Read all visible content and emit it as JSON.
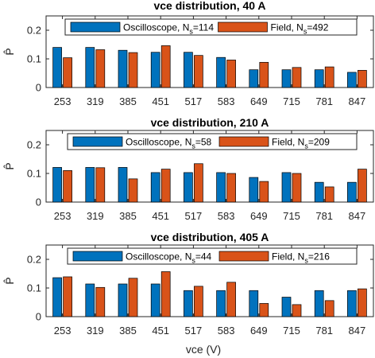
{
  "chart_data": [
    {
      "type": "bar",
      "title": "vce distribution, 40 A",
      "ylabel": "P̂",
      "xlabel": "",
      "ylim": [
        0,
        0.25
      ],
      "yticks": [
        "0",
        "0.1",
        "0.2"
      ],
      "categories": [
        "253",
        "319",
        "385",
        "451",
        "517",
        "583",
        "649",
        "715",
        "781",
        "847"
      ],
      "grid": false,
      "legend_position": "top",
      "series": [
        {
          "label_main": "Oscilloscope, N",
          "label_sub": "s",
          "label_tail": "=114",
          "color": "#0072BD",
          "values": [
            0.14,
            0.14,
            0.13,
            0.123,
            0.123,
            0.105,
            0.062,
            0.062,
            0.062,
            0.053
          ]
        },
        {
          "label_main": "Field, N",
          "label_sub": "s",
          "label_tail": "=492",
          "color": "#D95319",
          "values": [
            0.104,
            0.132,
            0.122,
            0.146,
            0.112,
            0.096,
            0.088,
            0.07,
            0.072,
            0.06
          ]
        }
      ]
    },
    {
      "type": "bar",
      "title": "vce distribution, 210 A",
      "ylabel": "P̂",
      "xlabel": "",
      "ylim": [
        0,
        0.25
      ],
      "yticks": [
        "0",
        "0.1",
        "0.2"
      ],
      "categories": [
        "253",
        "319",
        "385",
        "451",
        "517",
        "583",
        "649",
        "715",
        "781",
        "847"
      ],
      "grid": false,
      "legend_position": "top",
      "series": [
        {
          "label_main": "Oscilloscope, N",
          "label_sub": "s",
          "label_tail": "=58",
          "color": "#0072BD",
          "values": [
            0.121,
            0.121,
            0.121,
            0.103,
            0.103,
            0.103,
            0.086,
            0.103,
            0.069,
            0.069
          ]
        },
        {
          "label_main": "Field, N",
          "label_sub": "s",
          "label_tail": "=209",
          "color": "#D95319",
          "values": [
            0.11,
            0.12,
            0.081,
            0.115,
            0.134,
            0.1,
            0.072,
            0.1,
            0.053,
            0.115
          ]
        }
      ]
    },
    {
      "type": "bar",
      "title": "vce distribution, 405 A",
      "ylabel": "P̂",
      "xlabel": "vce (V)",
      "ylim": [
        0,
        0.25
      ],
      "yticks": [
        "0",
        "0.1",
        "0.2"
      ],
      "categories": [
        "253",
        "319",
        "385",
        "451",
        "517",
        "583",
        "649",
        "715",
        "781",
        "847"
      ],
      "grid": false,
      "legend_position": "top",
      "series": [
        {
          "label_main": "Oscilloscope, N",
          "label_sub": "s",
          "label_tail": "=44",
          "color": "#0072BD",
          "values": [
            0.136,
            0.114,
            0.114,
            0.114,
            0.091,
            0.091,
            0.091,
            0.068,
            0.091,
            0.091
          ]
        },
        {
          "label_main": "Field, N",
          "label_sub": "s",
          "label_tail": "=216",
          "color": "#D95319",
          "values": [
            0.139,
            0.102,
            0.134,
            0.157,
            0.106,
            0.12,
            0.046,
            0.042,
            0.056,
            0.097
          ]
        }
      ]
    }
  ]
}
